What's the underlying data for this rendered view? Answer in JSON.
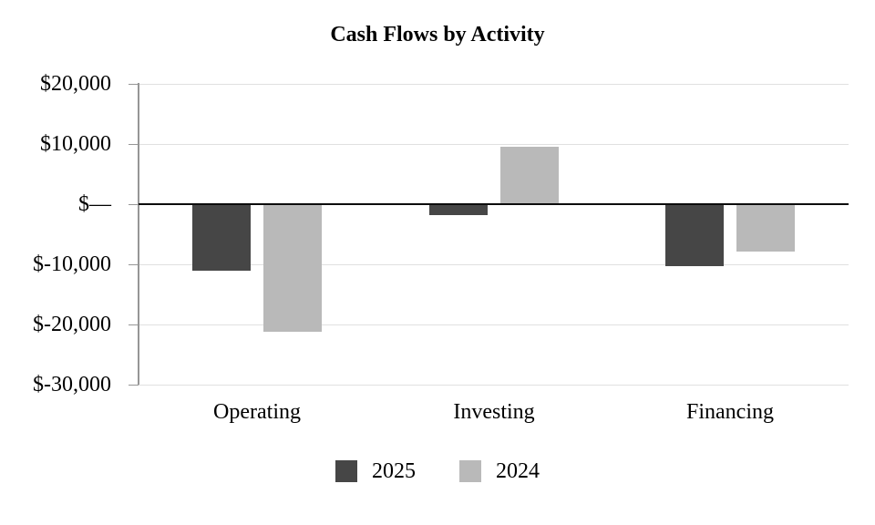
{
  "chart_data": {
    "type": "bar",
    "title": "Cash Flows by Activity",
    "categories": [
      "Operating",
      "Investing",
      "Financing"
    ],
    "series": [
      {
        "name": "2025",
        "color": "#464646",
        "values": [
          -11000,
          -1800,
          -10300
        ]
      },
      {
        "name": "2024",
        "color": "#b9b9b9",
        "values": [
          -21200,
          9500,
          -7900
        ]
      }
    ],
    "y_ticks": [
      {
        "label": "$20,000",
        "value": 20000
      },
      {
        "label": "$10,000",
        "value": 10000
      },
      {
        "label": "$—",
        "value": 0
      },
      {
        "label": "$-10,000",
        "value": -10000
      },
      {
        "label": "$-20,000",
        "value": -20000
      },
      {
        "label": "$-30,000",
        "value": -30000
      }
    ],
    "ylim": [
      -30000,
      20000
    ],
    "grid": "horizontal",
    "legend_position": "bottom",
    "colors": {
      "grid_line": "#e0e0e0",
      "axis_line": "#969696",
      "zero_line": "#0d0d0d",
      "text": "#000000"
    }
  }
}
